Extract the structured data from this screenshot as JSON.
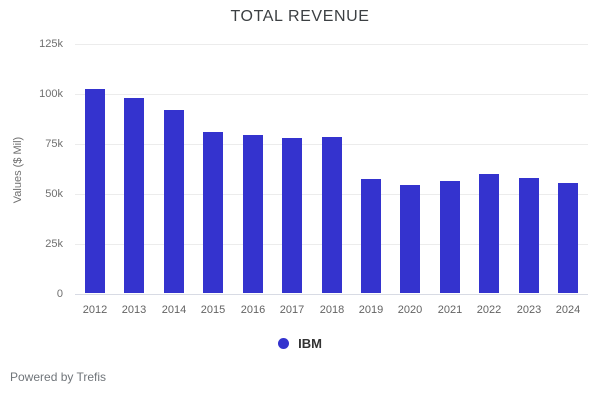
{
  "chart_data": {
    "type": "bar",
    "title": "TOTAL REVENUE",
    "xlabel": "",
    "ylabel": "Values ($ Mil)",
    "categories": [
      "2012",
      "2013",
      "2014",
      "2015",
      "2016",
      "2017",
      "2018",
      "2019",
      "2020",
      "2021",
      "2022",
      "2023",
      "2024"
    ],
    "series": [
      {
        "name": "IBM",
        "color": "#3433ce",
        "values": [
          102000,
          97500,
          91500,
          80500,
          79000,
          77500,
          78000,
          57000,
          54000,
          56000,
          59500,
          57500,
          55000
        ]
      }
    ],
    "ylim": [
      0,
      125000
    ],
    "yticks": [
      {
        "value": 0,
        "label": "0"
      },
      {
        "value": 25000,
        "label": "25k"
      },
      {
        "value": 50000,
        "label": "50k"
      },
      {
        "value": 75000,
        "label": "75k"
      },
      {
        "value": 100000,
        "label": "100k"
      },
      {
        "value": 125000,
        "label": "125k"
      }
    ],
    "grid": true,
    "legend_position": "bottom"
  },
  "footer": {
    "text": "Powered by Trefis"
  }
}
